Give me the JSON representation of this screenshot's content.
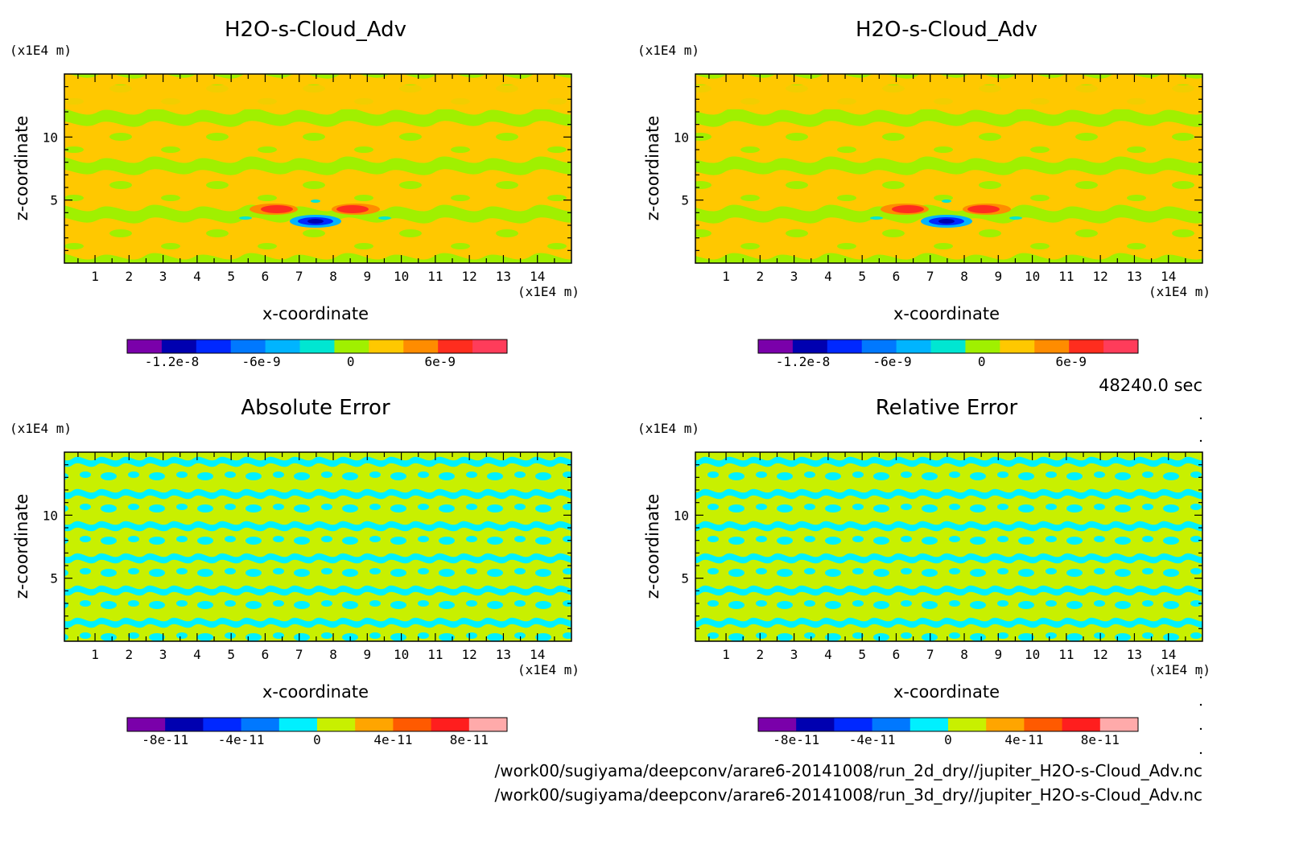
{
  "footer": {
    "time": "48240.0 sec",
    "file1": "/work00/sugiyama/deepconv/arare6-20141008/run_2d_dry//jupiter_H2O-s-Cloud_Adv.nc",
    "file2": "/work00/sugiyama/deepconv/arare6-20141008/run_3d_dry//jupiter_H2O-s-Cloud_Adv.nc"
  },
  "chart_data": [
    {
      "type": "heatmap",
      "title": "H2O-s-Cloud_Adv",
      "xlabel": "x-coordinate",
      "ylabel": "z-coordinate",
      "x_unit": "(x1E4 m)",
      "y_unit": "(x1E4 m)",
      "xlim": [
        0.1,
        15
      ],
      "ylim": [
        0,
        15
      ],
      "x_ticks": [
        "1",
        "2",
        "3",
        "4",
        "5",
        "6",
        "7",
        "8",
        "9",
        "10",
        "11",
        "12",
        "13",
        "14"
      ],
      "y_ticks": [
        "5",
        "10"
      ],
      "colorbar": {
        "colors": [
          "#7a00aa",
          "#0000b0",
          "#0028ff",
          "#0078ff",
          "#00b4ff",
          "#00e6d2",
          "#a0f000",
          "#ffc800",
          "#ff8c00",
          "#ff2d1e",
          "#ff3c5a"
        ],
        "labels": [
          {
            "text": "-1.2e-8",
            "value": -1.2e-08
          },
          {
            "text": "-6e-9",
            "value": -6e-09
          },
          {
            "text": "0",
            "value": 0
          },
          {
            "text": "6e-9",
            "value": 6e-09
          }
        ],
        "vmin": -1.5e-08,
        "vmax": 1.05e-08
      }
    },
    {
      "type": "heatmap",
      "title": "H2O-s-Cloud_Adv",
      "xlabel": "x-coordinate",
      "ylabel": "z-coordinate",
      "x_unit": "(x1E4 m)",
      "y_unit": "(x1E4 m)",
      "xlim": [
        0.1,
        15
      ],
      "ylim": [
        0,
        15
      ],
      "x_ticks": [
        "1",
        "2",
        "3",
        "4",
        "5",
        "6",
        "7",
        "8",
        "9",
        "10",
        "11",
        "12",
        "13",
        "14"
      ],
      "y_ticks": [
        "5",
        "10"
      ],
      "colorbar": {
        "colors": [
          "#7a00aa",
          "#0000b0",
          "#0028ff",
          "#0078ff",
          "#00b4ff",
          "#00e6d2",
          "#a0f000",
          "#ffc800",
          "#ff8c00",
          "#ff2d1e",
          "#ff3c5a"
        ],
        "labels": [
          {
            "text": "-1.2e-8",
            "value": -1.2e-08
          },
          {
            "text": "-6e-9",
            "value": -6e-09
          },
          {
            "text": "0",
            "value": 0
          },
          {
            "text": "6e-9",
            "value": 6e-09
          }
        ],
        "vmin": -1.5e-08,
        "vmax": 1.05e-08
      }
    },
    {
      "type": "heatmap",
      "title": "Absolute Error",
      "xlabel": "x-coordinate",
      "ylabel": "z-coordinate",
      "x_unit": "(x1E4 m)",
      "y_unit": "(x1E4 m)",
      "xlim": [
        0.1,
        15
      ],
      "ylim": [
        0,
        15
      ],
      "x_ticks": [
        "1",
        "2",
        "3",
        "4",
        "5",
        "6",
        "7",
        "8",
        "9",
        "10",
        "11",
        "12",
        "13",
        "14"
      ],
      "y_ticks": [
        "5",
        "10"
      ],
      "colorbar": {
        "colors": [
          "#7a00aa",
          "#0000b0",
          "#0028ff",
          "#0078ff",
          "#00f0ff",
          "#c8f000",
          "#ffa500",
          "#ff5a00",
          "#ff1e1e",
          "#ffaaaa"
        ],
        "labels": [
          {
            "text": "-8e-11",
            "value": -8e-11
          },
          {
            "text": "-4e-11",
            "value": -4e-11
          },
          {
            "text": "0",
            "value": 0
          },
          {
            "text": "4e-11",
            "value": 4e-11
          },
          {
            "text": "8e-11",
            "value": 8e-11
          }
        ],
        "vmin": -1e-10,
        "vmax": 1e-10
      }
    },
    {
      "type": "heatmap",
      "title": "Relative Error",
      "xlabel": "x-coordinate",
      "ylabel": "z-coordinate",
      "x_unit": "(x1E4 m)",
      "y_unit": "(x1E4 m)",
      "xlim": [
        0.1,
        15
      ],
      "ylim": [
        0,
        15
      ],
      "x_ticks": [
        "1",
        "2",
        "3",
        "4",
        "5",
        "6",
        "7",
        "8",
        "9",
        "10",
        "11",
        "12",
        "13",
        "14"
      ],
      "y_ticks": [
        "5",
        "10"
      ],
      "colorbar": {
        "colors": [
          "#7a00aa",
          "#0000b0",
          "#0028ff",
          "#0078ff",
          "#00f0ff",
          "#c8f000",
          "#ffa500",
          "#ff5a00",
          "#ff1e1e",
          "#ffaaaa"
        ],
        "labels": [
          {
            "text": "-8e-11",
            "value": -8e-11
          },
          {
            "text": "-4e-11",
            "value": -4e-11
          },
          {
            "text": "0",
            "value": 0
          },
          {
            "text": "4e-11",
            "value": 4e-11
          },
          {
            "text": "8e-11",
            "value": 8e-11
          }
        ],
        "vmin": -1e-10,
        "vmax": 1e-10
      }
    }
  ]
}
